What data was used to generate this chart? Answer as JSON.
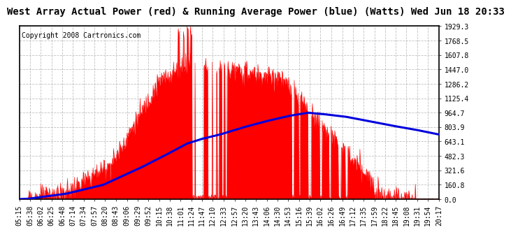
{
  "title": "West Array Actual Power (red) & Running Average Power (blue) (Watts) Wed Jun 18 20:33",
  "copyright": "Copyright 2008 Cartronics.com",
  "ylabel_right_values": [
    0.0,
    160.8,
    321.6,
    482.3,
    643.1,
    803.9,
    964.7,
    1125.4,
    1286.2,
    1447.0,
    1607.8,
    1768.5,
    1929.3
  ],
  "ymax": 1929.3,
  "ymin": 0.0,
  "background_color": "#ffffff",
  "plot_bg_color": "#ffffff",
  "grid_color": "#b0b0b0",
  "red_color": "#ff0000",
  "blue_color": "#0000dd",
  "x_labels": [
    "05:15",
    "05:38",
    "06:02",
    "06:25",
    "06:48",
    "07:14",
    "07:34",
    "07:57",
    "08:20",
    "08:43",
    "09:06",
    "09:29",
    "09:52",
    "10:15",
    "10:38",
    "11:01",
    "11:24",
    "11:47",
    "12:10",
    "12:33",
    "12:57",
    "13:20",
    "13:43",
    "14:06",
    "14:30",
    "14:53",
    "15:16",
    "15:39",
    "16:02",
    "16:26",
    "16:49",
    "17:12",
    "17:35",
    "17:59",
    "18:22",
    "18:45",
    "19:08",
    "19:31",
    "19:54",
    "20:17"
  ],
  "title_fontsize": 10,
  "copyright_fontsize": 7,
  "tick_fontsize": 7,
  "title_font": "monospace",
  "tick_font": "monospace"
}
